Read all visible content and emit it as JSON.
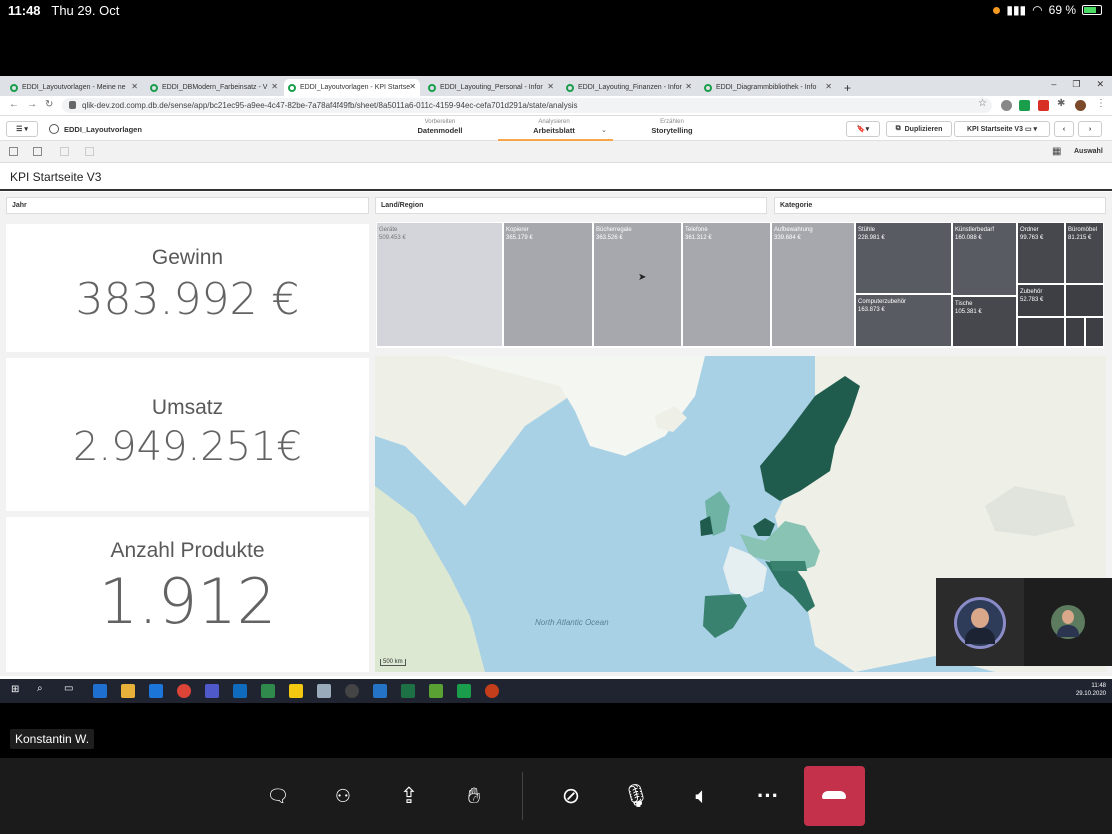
{
  "status_bar": {
    "time": "11:48",
    "date": "Thu 29. Oct",
    "battery": "69 %"
  },
  "browser": {
    "tabs": [
      {
        "label": "EDDI_Layoutvorlagen - Meine ne"
      },
      {
        "label": "EDDI_DBModern_Farbeinsatz - V"
      },
      {
        "label": "EDDI_Layoutvorlagen - KPI Startse"
      },
      {
        "label": "EDDI_Layouting_Personal - Infor"
      },
      {
        "label": "EDDI_Layouting_Finanzen - Infor"
      },
      {
        "label": "EDDI_Diagrammbibliothek - Info"
      }
    ],
    "new_tab": "+",
    "url": "qlik-dev.zod.comp.db.de/sense/app/bc21ec95-a9ee-4c47-82be-7a78af4f49fb/sheet/8a5011a6-011c-4159-94ec-cefa701d291a/state/analysis"
  },
  "qlik": {
    "app_name": "EDDI_Layoutvorlagen",
    "nav": [
      {
        "top": "Vorbereiten",
        "main": "Datenmodell"
      },
      {
        "top": "Analysieren",
        "main": "Arbeitsblatt"
      },
      {
        "top": "Erzählen",
        "main": "Storytelling"
      }
    ],
    "duplicate_label": "Duplizieren",
    "sheet_select": "KPI Startseite V3",
    "selection_label": "Auswahl",
    "sheet_title": "KPI Startseite V3",
    "filters": [
      "Jahr",
      "Land/Region",
      "Kategorie"
    ],
    "kpis": [
      {
        "label": "Gewinn",
        "value": "383.992 €"
      },
      {
        "label": "Umsatz",
        "value": "2.949.251€"
      },
      {
        "label": "Anzahl Produkte",
        "value": "1.912"
      }
    ],
    "treemap": [
      {
        "name": "Geräte",
        "value": "509.453 €"
      },
      {
        "name": "Kopierer",
        "value": "365.179 €"
      },
      {
        "name": "Bücherregale",
        "value": "363.526 €"
      },
      {
        "name": "Telefone",
        "value": "361.312 €"
      },
      {
        "name": "Aufbewahrung",
        "value": "339.684 €"
      },
      {
        "name": "Stühle",
        "value": "228.981 €"
      },
      {
        "name": "Künstlerbedarf",
        "value": "160.088 €"
      },
      {
        "name": "Ordner",
        "value": "99.763 €"
      },
      {
        "name": "Büromöbel",
        "value": "81.215 €"
      },
      {
        "name": "Computerzubehör",
        "value": "163.873 €"
      },
      {
        "name": "Tische",
        "value": "105.381 €"
      },
      {
        "name": "Zubehör",
        "value": "52.783 €"
      }
    ],
    "map_label": "North Atlantic Ocean",
    "map_scale": "500 km"
  },
  "taskbar": {
    "time": "11:48",
    "date": "29.10.2020"
  },
  "call": {
    "participant": "Konstantin W."
  },
  "colors": {
    "accent": "#f8a448",
    "hangup": "#c4314b",
    "map_dark": "#1f5c4e",
    "map_mid": "#6fb3a5"
  }
}
